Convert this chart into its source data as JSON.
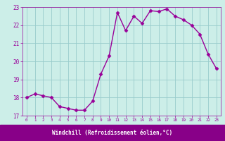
{
  "x": [
    0,
    1,
    2,
    3,
    4,
    5,
    6,
    7,
    8,
    9,
    10,
    11,
    12,
    13,
    14,
    15,
    16,
    17,
    18,
    19,
    20,
    21,
    22,
    23
  ],
  "y": [
    18.0,
    18.2,
    18.1,
    18.0,
    17.5,
    17.4,
    17.3,
    17.3,
    17.8,
    19.3,
    20.3,
    22.7,
    21.7,
    22.5,
    22.1,
    22.8,
    22.75,
    22.9,
    22.5,
    22.3,
    22.0,
    21.5,
    20.4,
    19.6
  ],
  "ylim": [
    17,
    23
  ],
  "yticks": [
    17,
    18,
    19,
    20,
    21,
    22,
    23
  ],
  "xticks": [
    0,
    1,
    2,
    3,
    4,
    5,
    6,
    7,
    8,
    9,
    10,
    11,
    12,
    13,
    14,
    15,
    16,
    17,
    18,
    19,
    20,
    21,
    22,
    23
  ],
  "xlabel": "Windchill (Refroidissement éolien,°C)",
  "line_color": "#990099",
  "marker": "D",
  "marker_size": 2.5,
  "bg_color": "#cceee8",
  "grid_color": "#99cccc",
  "tick_label_color": "#990099",
  "bottom_bar_color": "#880088",
  "xlim": [
    -0.5,
    23.5
  ]
}
